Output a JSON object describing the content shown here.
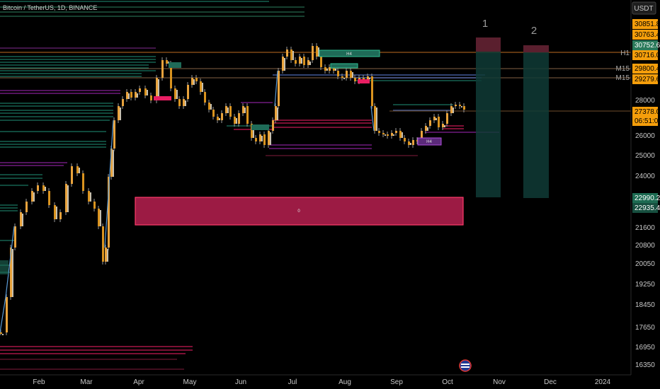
{
  "header": {
    "title": "Bitcoin / TetherUS, 1D, BINANCE"
  },
  "currency_label": "USDT",
  "colors": {
    "background": "#000000",
    "up": "#f5a623",
    "down": "#f5a623",
    "teal": "#26a69a",
    "pink": "#e91e63",
    "purple": "#9c27b0",
    "blue": "#5b7bd5"
  },
  "chart_data": {
    "type": "candlestick",
    "symbol": "Bitcoin / TetherUS",
    "interval": "1D",
    "exchange": "BINANCE",
    "price_axis": {
      "ticks": [
        28000,
        26000,
        25000,
        24000,
        21600,
        20800,
        20050,
        19250,
        18450,
        17650,
        16950,
        16350
      ]
    },
    "time_axis": {
      "ticks": [
        "Feb",
        "Mar",
        "Apr",
        "May",
        "Jun",
        "Jul",
        "Aug",
        "Sep",
        "Oct",
        "Nov",
        "Dec",
        "2024"
      ]
    },
    "price_tags": [
      {
        "value": "30851.80",
        "style": "orange"
      },
      {
        "value": "30763.44",
        "style": "orange"
      },
      {
        "value": "30752.68",
        "style": "teal"
      },
      {
        "value": "30716.03",
        "style": "orange"
      },
      {
        "value": "29800.41",
        "style": "orange"
      },
      {
        "value": "29279.62",
        "style": "orange"
      },
      {
        "value": "27378.09",
        "style": "orange-current"
      },
      {
        "value": "06:51:01",
        "style": "orange-countdown"
      },
      {
        "value": "22990.22",
        "style": "teal"
      },
      {
        "value": "22935.46",
        "style": "teal"
      }
    ],
    "timeframe_markers": [
      {
        "label": "H1",
        "near": "30716.03"
      },
      {
        "label": "M15",
        "near": "29800.41"
      },
      {
        "label": "M15",
        "near": "29279.62"
      }
    ],
    "zones": [
      {
        "label": "H4",
        "color": "teal",
        "month": "Jul-Aug",
        "level": "30750"
      },
      {
        "label": "H4",
        "color": "purple",
        "month": "Sep",
        "level": "26000"
      },
      {
        "label": "0",
        "color": "pink",
        "month": "Apr-Sep",
        "level": "22800"
      }
    ],
    "scenarios": [
      {
        "label": "1",
        "month": "Oct-Nov"
      },
      {
        "label": "2",
        "month": "Nov-Dec"
      }
    ]
  }
}
